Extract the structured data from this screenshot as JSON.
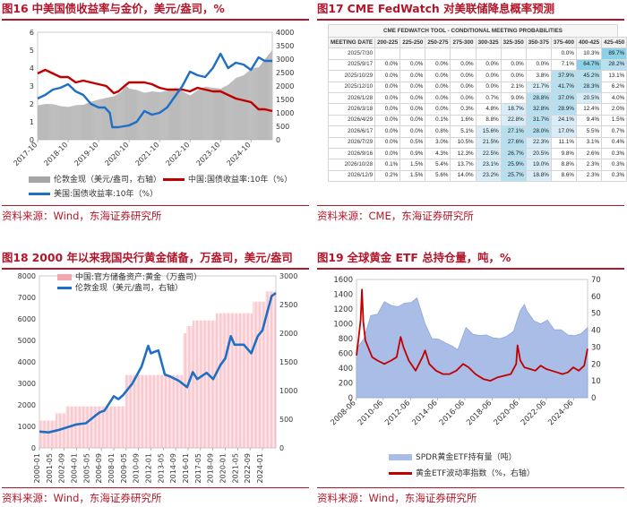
{
  "panel16": {
    "fig_num": "图16",
    "title": "中美国债收益率与金价，美元/盎司，%",
    "source": "资料来源：Wind，东海证券研究所",
    "legend": [
      {
        "label": "伦敦金现（美元/盎司，右轴）",
        "color": "#a6a6a6"
      },
      {
        "label": "中国:国债收益率:10年（%）",
        "color": "#c00000"
      },
      {
        "label": "美国:国债收益率:10年（%）",
        "color": "#1f6fc5"
      }
    ]
  },
  "panel17": {
    "fig_num": "图17",
    "title": "CME FedWatch 对美联储降息概率预测",
    "source": "资料来源：CME，东海证券研究所",
    "table_title": "CME FEDWATCH TOOL - CONDITIONAL MEETING PROBABILITIES",
    "header": [
      "MEETING DATE",
      "200-225",
      "225-250",
      "250-275",
      "275-300",
      "300-325",
      "325-350",
      "350-375",
      "375-400",
      "400-425",
      "425-450"
    ],
    "rows": [
      [
        "2025/7/30",
        "",
        "",
        "",
        "",
        "",
        "",
        "",
        "0.0%",
        "10.3%",
        "89.7%"
      ],
      [
        "2025/9/17",
        "0.0%",
        "0.0%",
        "0.0%",
        "0.0%",
        "0.0%",
        "0.0%",
        "0.0%",
        "7.1%",
        "64.7%",
        "28.2%"
      ],
      [
        "2025/10/29",
        "0.0%",
        "0.0%",
        "0.0%",
        "0.0%",
        "0.0%",
        "0.0%",
        "3.8%",
        "37.9%",
        "45.2%",
        "13.1%"
      ],
      [
        "2025/12/10",
        "0.0%",
        "0.0%",
        "0.0%",
        "0.0%",
        "0.0%",
        "2.1%",
        "21.7%",
        "41.7%",
        "28.3%",
        "6.2%"
      ],
      [
        "2026/1/28",
        "0.0%",
        "0.0%",
        "0.0%",
        "0.0%",
        "0.7%",
        "9.0%",
        "28.8%",
        "37.0%",
        "20.5%",
        "4.0%"
      ],
      [
        "2026/3/18",
        "0.0%",
        "0.0%",
        "0.0%",
        "0.3%",
        "4.8%",
        "18.7%",
        "32.8%",
        "28.9%",
        "12.4%",
        "2.0%"
      ],
      [
        "2026/4/29",
        "0.0%",
        "0.0%",
        "0.1%",
        "1.6%",
        "8.8%",
        "22.8%",
        "31.7%",
        "24.1%",
        "9.4%",
        "1.5%"
      ],
      [
        "2026/6/17",
        "0.0%",
        "0.0%",
        "0.8%",
        "5.1%",
        "15.6%",
        "27.1%",
        "28.0%",
        "17.0%",
        "5.5%",
        "0.7%"
      ],
      [
        "2026/7/29",
        "0.0%",
        "0.5%",
        "3.0%",
        "10.5%",
        "21.5%",
        "27.6%",
        "22.3%",
        "11.1%",
        "3.1%",
        "0.4%"
      ],
      [
        "2026/9/16",
        "0.0%",
        "0.9%",
        "4.3%",
        "12.3%",
        "22.5%",
        "26.7%",
        "20.5%",
        "9.8%",
        "2.6%",
        "0.3%"
      ],
      [
        "2026/10/28",
        "0.1%",
        "1.5%",
        "5.4%",
        "13.7%",
        "23.1%",
        "25.9%",
        "19.0%",
        "8.8%",
        "2.3%",
        "0.3%"
      ],
      [
        "2026/12/9",
        "0.2%",
        "1.5%",
        "5.6%",
        "14.0%",
        "23.2%",
        "25.7%",
        "18.8%",
        "8.6%",
        "2.3%",
        "0.3%"
      ]
    ]
  },
  "panel18": {
    "fig_num": "图18",
    "title": "2000 年以来我国央行黄金储备，万盎司，美元/盎司",
    "source": "资料来源：Wind，东海证券研究所",
    "legend": [
      {
        "label": "中国:官方储备资产:黄金（万盎司）",
        "color": "#f4a7b1"
      },
      {
        "label": "伦敦金现（美元/盎司，右轴）",
        "color": "#1f6fc5"
      }
    ]
  },
  "panel19": {
    "fig_num": "图19",
    "title": "全球黄金 ETF 总持仓量，吨，%",
    "source": "资料来源：Wind，东海证券研究所",
    "legend": [
      {
        "label": "SPDR黄金ETF持有量（吨）",
        "color": "#a9bde6"
      },
      {
        "label": "黄金ETF波动率指数（%，右轴）",
        "color": "#c00000"
      }
    ]
  },
  "chart_data": [
    {
      "id": "fig16",
      "type": "area",
      "title": "中美国债收益率与金价，美元/盎司，%",
      "x_ticks": [
        "2017-10",
        "2018-10",
        "2019-10",
        "2020-10",
        "2021-10",
        "2022-10",
        "2023-10",
        "2024-10"
      ],
      "y_left_ticks": [
        0,
        1,
        2,
        3,
        4,
        5,
        6
      ],
      "y_right_ticks": [
        0,
        500,
        1000,
        1500,
        2000,
        2500,
        3000,
        3500,
        4000
      ],
      "ylim_left": [
        0,
        6
      ],
      "ylim_right": [
        0,
        4000
      ],
      "x_range": [
        2017.75,
        2025.45
      ],
      "series": [
        {
          "name": "伦敦金现（美元/盎司，右轴）",
          "axis": "right",
          "style": "area",
          "x": [
            2017.75,
            2018.0,
            2018.25,
            2018.5,
            2018.75,
            2019.0,
            2019.25,
            2019.5,
            2019.75,
            2020.0,
            2020.25,
            2020.5,
            2020.6,
            2020.75,
            2021.0,
            2021.25,
            2021.5,
            2021.75,
            2022.0,
            2022.25,
            2022.5,
            2022.75,
            2023.0,
            2023.25,
            2023.5,
            2023.75,
            2024.0,
            2024.25,
            2024.5,
            2024.75,
            2025.0,
            2025.2,
            2025.45
          ],
          "values": [
            1280,
            1330,
            1325,
            1250,
            1220,
            1290,
            1300,
            1420,
            1500,
            1560,
            1620,
            1800,
            2050,
            1900,
            1850,
            1750,
            1800,
            1770,
            1820,
            1920,
            1800,
            1650,
            1850,
            1980,
            1930,
            1900,
            2050,
            2300,
            2400,
            2650,
            2700,
            3000,
            3350
          ]
        },
        {
          "name": "中国:国债收益率:10年（%）",
          "axis": "left",
          "style": "line",
          "x": [
            2017.75,
            2018.0,
            2018.25,
            2018.5,
            2018.75,
            2019.0,
            2019.25,
            2019.5,
            2019.75,
            2020.0,
            2020.25,
            2020.4,
            2020.6,
            2020.75,
            2021.0,
            2021.25,
            2021.5,
            2021.75,
            2022.0,
            2022.25,
            2022.5,
            2022.75,
            2023.0,
            2023.25,
            2023.5,
            2023.75,
            2024.0,
            2024.25,
            2024.5,
            2024.75,
            2025.0,
            2025.2,
            2025.45
          ],
          "values": [
            3.7,
            3.9,
            3.7,
            3.5,
            3.5,
            3.2,
            3.3,
            3.2,
            3.1,
            3.0,
            2.6,
            2.7,
            3.0,
            3.2,
            3.2,
            3.2,
            3.1,
            2.9,
            2.8,
            2.8,
            2.8,
            2.7,
            2.9,
            2.8,
            2.7,
            2.7,
            2.5,
            2.3,
            2.2,
            2.1,
            1.7,
            1.7,
            1.6
          ]
        },
        {
          "name": "美国:国债收益率:10年（%）",
          "axis": "left",
          "style": "line",
          "x": [
            2017.75,
            2018.0,
            2018.25,
            2018.5,
            2018.75,
            2019.0,
            2019.25,
            2019.5,
            2019.75,
            2019.95,
            2020.12,
            2020.2,
            2020.4,
            2020.75,
            2021.0,
            2021.25,
            2021.5,
            2021.75,
            2022.0,
            2022.25,
            2022.5,
            2022.75,
            2023.0,
            2023.25,
            2023.5,
            2023.75,
            2024.0,
            2024.25,
            2024.5,
            2024.75,
            2025.0,
            2025.2,
            2025.45
          ],
          "values": [
            2.3,
            2.5,
            2.8,
            2.9,
            3.1,
            2.7,
            2.5,
            2.0,
            1.8,
            1.8,
            1.5,
            0.7,
            0.7,
            0.8,
            1.0,
            1.6,
            1.4,
            1.5,
            1.8,
            2.4,
            3.0,
            3.8,
            3.6,
            3.5,
            4.0,
            4.8,
            4.0,
            4.3,
            4.2,
            3.9,
            4.6,
            4.4,
            4.4
          ]
        }
      ]
    },
    {
      "id": "fig18",
      "type": "bar",
      "title": "2000 年以来我国央行黄金储备，万盎司，美元/盎司",
      "x_ticks": [
        "2000-01",
        "2001-05",
        "2002-09",
        "2004-01",
        "2005-05",
        "2006-09",
        "2008-01",
        "2009-05",
        "2010-09",
        "2012-01",
        "2013-05",
        "2014-09",
        "2016-01",
        "2017-05",
        "2018-09",
        "2020-01",
        "2021-05",
        "2022-09",
        "2024-01"
      ],
      "y_left_ticks": [
        0,
        1000,
        2000,
        3000,
        4000,
        5000,
        6000,
        7000,
        8000
      ],
      "y_right_ticks": [
        0,
        500,
        1000,
        1500,
        2000,
        2500,
        3000
      ],
      "ylim_left": [
        0,
        8000
      ],
      "ylim_right": [
        0,
        3000
      ],
      "x_range": [
        2000.0,
        2025.45
      ],
      "series": [
        {
          "name": "中国:官方储备资产:黄金（万盎司）",
          "axis": "left",
          "style": "bars",
          "steps": [
            [
              2000.0,
              1267
            ],
            [
              2001.7,
              1608
            ],
            [
              2002.8,
              1929
            ],
            [
              2009.25,
              3389
            ],
            [
              2015.5,
              5332
            ],
            [
              2015.8,
              5666
            ],
            [
              2016.5,
              5924
            ],
            [
              2019.0,
              6264
            ],
            [
              2023.0,
              6800
            ],
            [
              2024.3,
              7280
            ],
            [
              2025.45,
              7380
            ]
          ]
        },
        {
          "name": "伦敦金现（美元/盎司，右轴）",
          "axis": "right",
          "style": "line",
          "x": [
            2000.0,
            2001.0,
            2002.0,
            2003.0,
            2004.0,
            2005.0,
            2006.0,
            2006.5,
            2007.0,
            2008.0,
            2008.5,
            2009.0,
            2010.0,
            2011.0,
            2011.7,
            2012.0,
            2012.8,
            2013.5,
            2014.0,
            2015.0,
            2015.9,
            2016.5,
            2017.0,
            2018.0,
            2018.7,
            2019.5,
            2020.0,
            2020.6,
            2021.0,
            2022.0,
            2022.8,
            2023.5,
            2024.0,
            2024.5,
            2025.0,
            2025.45
          ],
          "values": [
            285,
            270,
            310,
            360,
            410,
            430,
            560,
            620,
            650,
            900,
            850,
            920,
            1120,
            1420,
            1780,
            1650,
            1700,
            1280,
            1250,
            1170,
            1060,
            1320,
            1200,
            1310,
            1200,
            1450,
            1560,
            1950,
            1800,
            1800,
            1650,
            1950,
            2050,
            2350,
            2650,
            2700
          ]
        }
      ]
    },
    {
      "id": "fig19",
      "type": "area",
      "title": "全球黄金 ETF 总持仓量，吨，%",
      "x_ticks": [
        "2008-06",
        "2010-06",
        "2012-06",
        "2014-06",
        "2016-06",
        "2018-06",
        "2020-06",
        "2022-06",
        "2024-06"
      ],
      "y_left_ticks": [
        0,
        200,
        400,
        600,
        800,
        1000,
        1200,
        1400,
        1600
      ],
      "y_right_ticks": [
        0,
        10,
        20,
        30,
        40,
        50,
        60,
        70
      ],
      "ylim_left": [
        0,
        1600
      ],
      "ylim_right": [
        0,
        70
      ],
      "x_range": [
        2008.45,
        2025.45
      ],
      "series": [
        {
          "name": "SPDR黄金ETF持有量（吨）",
          "axis": "left",
          "style": "area",
          "x": [
            2008.45,
            2009.0,
            2009.5,
            2010.0,
            2010.5,
            2011.0,
            2011.5,
            2012.0,
            2012.5,
            2012.9,
            2013.5,
            2014.0,
            2014.5,
            2015.0,
            2015.5,
            2015.9,
            2016.5,
            2017.0,
            2017.5,
            2018.0,
            2018.5,
            2019.0,
            2019.5,
            2020.0,
            2020.5,
            2020.8,
            2021.0,
            2021.5,
            2022.0,
            2022.5,
            2023.0,
            2023.5,
            2024.0,
            2024.5,
            2025.0,
            2025.45
          ],
          "values": [
            660,
            800,
            1110,
            1130,
            1300,
            1250,
            1230,
            1280,
            1290,
            1350,
            1000,
            800,
            790,
            740,
            700,
            650,
            950,
            860,
            840,
            850,
            810,
            800,
            830,
            900,
            1180,
            1260,
            1170,
            1040,
            1000,
            1050,
            920,
            920,
            850,
            840,
            870,
            950
          ]
        },
        {
          "name": "黄金ETF波动率指数（%，右轴）",
          "axis": "right",
          "style": "line",
          "x": [
            2008.45,
            2008.6,
            2008.75,
            2008.85,
            2008.95,
            2009.1,
            2009.3,
            2009.6,
            2010.0,
            2010.5,
            2011.0,
            2011.4,
            2011.7,
            2011.9,
            2012.3,
            2012.8,
            2013.3,
            2013.5,
            2013.8,
            2014.3,
            2014.8,
            2015.3,
            2015.8,
            2016.3,
            2016.7,
            2017.2,
            2017.8,
            2018.3,
            2018.8,
            2019.3,
            2019.8,
            2020.2,
            2020.3,
            2020.5,
            2020.8,
            2021.2,
            2021.6,
            2022.0,
            2022.4,
            2022.8,
            2023.2,
            2023.6,
            2024.0,
            2024.4,
            2024.8,
            2025.2,
            2025.45
          ],
          "values": [
            25,
            35,
            46,
            64,
            45,
            34,
            30,
            24,
            22,
            20,
            22,
            24,
            36,
            30,
            22,
            16,
            24,
            28,
            20,
            16,
            14,
            14,
            16,
            20,
            18,
            14,
            11,
            10,
            12,
            13,
            14,
            20,
            31,
            22,
            18,
            17,
            16,
            19,
            17,
            16,
            15,
            14,
            15,
            18,
            16,
            19,
            29
          ]
        }
      ]
    }
  ]
}
